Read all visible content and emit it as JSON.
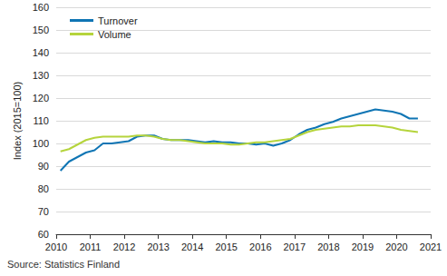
{
  "chart_data": {
    "type": "line",
    "y_label": "Index (2015=100)",
    "annotations": [
      "Source: Statistics Finland"
    ],
    "x": [
      2010.125,
      2010.375,
      2010.625,
      2010.875,
      2011.125,
      2011.375,
      2011.625,
      2011.875,
      2012.125,
      2012.375,
      2012.625,
      2012.875,
      2013.125,
      2013.375,
      2013.625,
      2013.875,
      2014.125,
      2014.375,
      2014.625,
      2014.875,
      2015.125,
      2015.375,
      2015.625,
      2015.875,
      2016.125,
      2016.375,
      2016.625,
      2016.875,
      2017.125,
      2017.375,
      2017.625,
      2017.875,
      2018.125,
      2018.375,
      2018.625,
      2018.875,
      2019.125,
      2019.375,
      2019.625,
      2019.875,
      2020.125,
      2020.375,
      2020.625
    ],
    "series": [
      {
        "name": "Turnover",
        "color": "#0f75b4",
        "values": [
          88,
          92,
          94,
          96,
          97,
          100,
          100,
          100.5,
          101,
          103,
          103.5,
          103.5,
          102,
          101.5,
          101.5,
          101.5,
          101,
          100.5,
          101,
          100.5,
          100.5,
          100,
          100,
          99.5,
          100,
          99,
          100,
          101.5,
          104,
          106,
          107,
          108.5,
          109.5,
          111,
          112,
          113,
          114,
          115,
          114.5,
          114,
          113,
          111,
          111
        ]
      },
      {
        "name": "Volume",
        "color": "#b5d43c",
        "values": [
          96.5,
          97.5,
          99.5,
          101.5,
          102.5,
          103,
          103,
          103,
          103,
          103.5,
          103.5,
          103,
          102,
          101.5,
          101.5,
          101,
          100.5,
          100,
          100,
          100,
          99.5,
          99.5,
          100,
          100.5,
          100.5,
          101,
          101.5,
          102,
          103.5,
          105,
          106,
          106.5,
          107,
          107.5,
          107.5,
          108,
          108,
          108,
          107.5,
          107,
          106,
          105.5,
          105
        ]
      }
    ],
    "xlim": [
      2010,
      2021
    ],
    "xticks": [
      2010,
      2011,
      2012,
      2013,
      2014,
      2015,
      2016,
      2017,
      2018,
      2019,
      2020,
      2021
    ],
    "ylim": [
      60,
      160
    ],
    "yticks": [
      60,
      70,
      80,
      90,
      100,
      110,
      120,
      130,
      140,
      150,
      160
    ],
    "grid": true,
    "legend": "upper left"
  }
}
